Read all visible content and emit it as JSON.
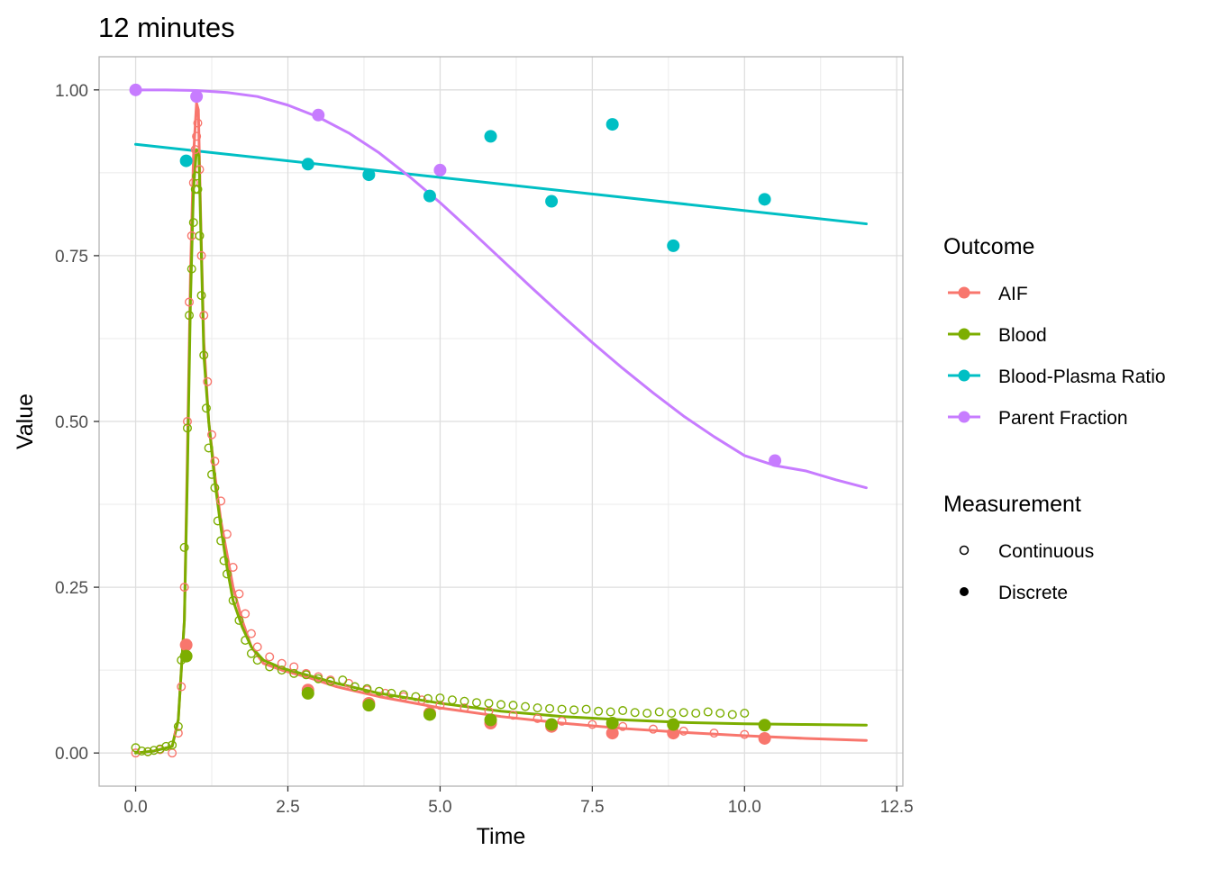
{
  "chart_data": {
    "type": "line",
    "title": "12 minutes",
    "xlabel": "Time",
    "ylabel": "Value",
    "xlim": [
      -0.6,
      12.6
    ],
    "ylim": [
      -0.05,
      1.05
    ],
    "x_ticks": [
      0,
      2.5,
      5,
      7.5,
      10,
      12.5
    ],
    "x_tick_labels": [
      "0.0",
      "2.5",
      "5.0",
      "7.5",
      "10.0",
      "12.5"
    ],
    "y_ticks": [
      0,
      0.25,
      0.5,
      0.75,
      1
    ],
    "y_tick_labels": [
      "0.00",
      "0.25",
      "0.50",
      "0.75",
      "1.00"
    ],
    "grid": true,
    "legend_placement": "right",
    "legend": {
      "outcome_title": "Outcome",
      "measurement_title": "Measurement",
      "outcomes": [
        {
          "name": "AIF",
          "color": "#F8766D"
        },
        {
          "name": "Blood",
          "color": "#7CAE00"
        },
        {
          "name": "Blood-Plasma Ratio",
          "color": "#00BFC4"
        },
        {
          "name": "Parent Fraction",
          "color": "#C77CFF"
        }
      ],
      "measurements": [
        {
          "name": "Continuous",
          "shape": "open-circle"
        },
        {
          "name": "Discrete",
          "shape": "filled-circle"
        }
      ]
    },
    "series": [
      {
        "name": "AIF",
        "color": "#F8766D",
        "fit": {
          "x": [
            0,
            0.3,
            0.6,
            0.7,
            0.8,
            0.85,
            0.9,
            0.95,
            1.0,
            1.03,
            1.07,
            1.12,
            1.2,
            1.3,
            1.4,
            1.5,
            1.6,
            1.75,
            1.9,
            2.1,
            2.4,
            2.8,
            3.3,
            4,
            5,
            6,
            7,
            8,
            9,
            10,
            11,
            12
          ],
          "y": [
            0,
            0.003,
            0.01,
            0.05,
            0.2,
            0.45,
            0.72,
            0.9,
            0.98,
            0.97,
            0.8,
            0.62,
            0.5,
            0.42,
            0.35,
            0.3,
            0.25,
            0.2,
            0.16,
            0.135,
            0.125,
            0.115,
            0.1,
            0.085,
            0.068,
            0.055,
            0.045,
            0.037,
            0.031,
            0.026,
            0.022,
            0.019
          ]
        },
        "discrete": {
          "x": [
            0.83,
            2.83,
            3.83,
            4.83,
            5.83,
            6.83,
            7.83,
            8.83,
            10.33
          ],
          "y": [
            0.163,
            0.095,
            0.075,
            0.06,
            0.045,
            0.04,
            0.03,
            0.03,
            0.022
          ]
        },
        "continuous": {
          "x": [
            0,
            0.2,
            0.4,
            0.6,
            0.7,
            0.75,
            0.8,
            0.85,
            0.88,
            0.92,
            0.95,
            0.98,
            1.0,
            1.02,
            1.05,
            1.08,
            1.12,
            1.18,
            1.25,
            1.3,
            1.4,
            1.5,
            1.6,
            1.7,
            1.8,
            1.9,
            2.0,
            2.2,
            2.4,
            2.6,
            2.8,
            3.0,
            3.2,
            3.5,
            3.8,
            4.1,
            4.4,
            4.7,
            5.0,
            5.4,
            5.8,
            6.2,
            6.6,
            7.0,
            7.5,
            8.0,
            8.5,
            9.0,
            9.5,
            10.0
          ],
          "y": [
            0.0,
            0.002,
            0.005,
            0.0,
            0.03,
            0.1,
            0.25,
            0.5,
            0.68,
            0.78,
            0.86,
            0.91,
            0.93,
            0.95,
            0.88,
            0.75,
            0.66,
            0.56,
            0.48,
            0.44,
            0.38,
            0.33,
            0.28,
            0.24,
            0.21,
            0.18,
            0.16,
            0.145,
            0.135,
            0.13,
            0.12,
            0.115,
            0.11,
            0.105,
            0.095,
            0.09,
            0.085,
            0.08,
            0.072,
            0.068,
            0.063,
            0.057,
            0.052,
            0.048,
            0.043,
            0.04,
            0.036,
            0.033,
            0.03,
            0.028
          ]
        }
      },
      {
        "name": "Blood",
        "color": "#7CAE00",
        "fit": {
          "x": [
            0,
            0.3,
            0.6,
            0.7,
            0.8,
            0.85,
            0.9,
            0.95,
            1.0,
            1.04,
            1.08,
            1.12,
            1.2,
            1.3,
            1.4,
            1.5,
            1.6,
            1.75,
            1.9,
            2.1,
            2.4,
            2.8,
            3.3,
            4,
            5,
            6,
            7,
            8,
            9,
            10,
            11,
            12
          ],
          "y": [
            0,
            0.003,
            0.01,
            0.05,
            0.2,
            0.42,
            0.68,
            0.85,
            0.91,
            0.9,
            0.75,
            0.6,
            0.5,
            0.41,
            0.34,
            0.28,
            0.23,
            0.19,
            0.16,
            0.14,
            0.128,
            0.118,
            0.105,
            0.09,
            0.075,
            0.063,
            0.055,
            0.05,
            0.046,
            0.044,
            0.043,
            0.042
          ]
        },
        "discrete": {
          "x": [
            0.83,
            2.83,
            3.83,
            4.83,
            5.83,
            6.83,
            7.83,
            8.83,
            10.33
          ],
          "y": [
            0.146,
            0.09,
            0.072,
            0.058,
            0.05,
            0.043,
            0.045,
            0.043,
            0.042
          ]
        },
        "continuous": {
          "x": [
            0,
            0.1,
            0.2,
            0.3,
            0.4,
            0.5,
            0.6,
            0.7,
            0.75,
            0.8,
            0.85,
            0.88,
            0.92,
            0.95,
            0.98,
            1.0,
            1.02,
            1.05,
            1.08,
            1.12,
            1.16,
            1.2,
            1.25,
            1.3,
            1.35,
            1.4,
            1.45,
            1.5,
            1.6,
            1.7,
            1.8,
            1.9,
            2.0,
            2.2,
            2.4,
            2.6,
            2.8,
            3.0,
            3.2,
            3.4,
            3.6,
            3.8,
            4.0,
            4.2,
            4.4,
            4.6,
            4.8,
            5.0,
            5.2,
            5.4,
            5.6,
            5.8,
            6.0,
            6.2,
            6.4,
            6.6,
            6.8,
            7.0,
            7.2,
            7.4,
            7.6,
            7.8,
            8.0,
            8.2,
            8.4,
            8.6,
            8.8,
            9.0,
            9.2,
            9.4,
            9.6,
            9.8,
            10.0
          ],
          "y": [
            0.008,
            0.003,
            0.002,
            0.004,
            0.006,
            0.01,
            0.012,
            0.04,
            0.14,
            0.31,
            0.49,
            0.66,
            0.73,
            0.8,
            0.85,
            0.87,
            0.85,
            0.78,
            0.69,
            0.6,
            0.52,
            0.46,
            0.42,
            0.4,
            0.35,
            0.32,
            0.29,
            0.27,
            0.23,
            0.2,
            0.17,
            0.15,
            0.14,
            0.13,
            0.125,
            0.12,
            0.118,
            0.112,
            0.108,
            0.11,
            0.1,
            0.097,
            0.093,
            0.09,
            0.088,
            0.085,
            0.082,
            0.083,
            0.08,
            0.078,
            0.076,
            0.075,
            0.073,
            0.072,
            0.07,
            0.068,
            0.067,
            0.066,
            0.065,
            0.066,
            0.063,
            0.062,
            0.064,
            0.061,
            0.06,
            0.062,
            0.06,
            0.061,
            0.06,
            0.062,
            0.06,
            0.058,
            0.06
          ]
        }
      },
      {
        "name": "Blood-Plasma Ratio",
        "color": "#00BFC4",
        "fit": {
          "x": [
            0,
            12
          ],
          "y": [
            0.918,
            0.798
          ]
        },
        "discrete": {
          "x": [
            0.83,
            2.83,
            3.83,
            4.83,
            5.83,
            6.83,
            7.83,
            8.83,
            10.33
          ],
          "y": [
            0.893,
            0.888,
            0.872,
            0.84,
            0.93,
            0.832,
            0.948,
            0.765,
            0.835
          ]
        }
      },
      {
        "name": "Parent Fraction",
        "color": "#C77CFF",
        "fit": {
          "x": [
            0,
            0.5,
            1,
            1.5,
            2,
            2.5,
            3,
            3.5,
            4,
            4.5,
            5,
            5.5,
            6,
            6.5,
            7,
            7.5,
            8,
            8.5,
            9,
            9.5,
            10,
            10.5,
            11,
            11.5,
            12
          ],
          "y": [
            1.0,
            1.0,
            0.999,
            0.996,
            0.99,
            0.977,
            0.959,
            0.935,
            0.905,
            0.869,
            0.83,
            0.788,
            0.745,
            0.702,
            0.66,
            0.619,
            0.58,
            0.543,
            0.508,
            0.477,
            0.4485,
            0.4335,
            0.4255,
            0.412,
            0.4
          ]
        },
        "discrete": {
          "x": [
            0,
            1,
            3,
            5,
            10.5
          ],
          "y": [
            1.0,
            0.99,
            0.962,
            0.879,
            0.441
          ]
        }
      }
    ]
  }
}
